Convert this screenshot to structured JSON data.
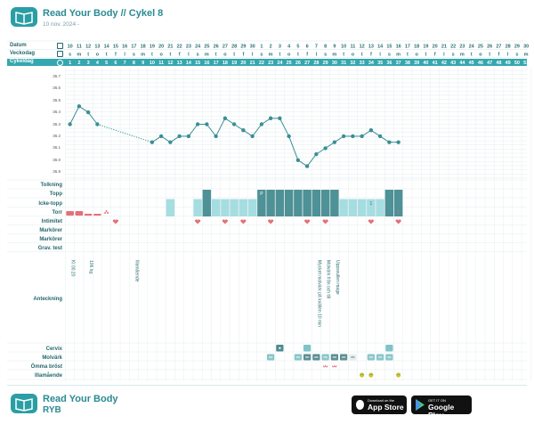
{
  "header": {
    "title": "Read Your Body // Cykel 8",
    "subtitle": "10 nov. 2024 -"
  },
  "row_labels": {
    "date": "Datum",
    "weekday": "Veckodag",
    "cycleday": "Cykeldag"
  },
  "dates": [
    "10",
    "11",
    "12",
    "13",
    "14",
    "15",
    "16",
    "17",
    "18",
    "19",
    "20",
    "21",
    "22",
    "23",
    "24",
    "25",
    "26",
    "27",
    "28",
    "29",
    "30",
    "1",
    "2",
    "3",
    "4",
    "5",
    "6",
    "7",
    "8",
    "9",
    "10",
    "11",
    "12",
    "13",
    "14",
    "15",
    "16",
    "17",
    "18",
    "19",
    "20",
    "21",
    "22",
    "23",
    "24",
    "25",
    "26",
    "27",
    "28",
    "29",
    "30"
  ],
  "weekdays": [
    "s",
    "m",
    "t",
    "o",
    "t",
    "f",
    "l",
    "s",
    "m",
    "t",
    "o",
    "t",
    "f",
    "l",
    "s",
    "m",
    "t",
    "o",
    "t",
    "f",
    "l",
    "s",
    "m",
    "t",
    "o",
    "t",
    "f",
    "l",
    "s",
    "m",
    "t",
    "o",
    "t",
    "f",
    "l",
    "s",
    "m",
    "t",
    "o",
    "t",
    "f",
    "l",
    "s",
    "m",
    "t",
    "o",
    "t",
    "f",
    "l",
    "s",
    "m"
  ],
  "cycledays": [
    "1",
    "2",
    "3",
    "4",
    "5",
    "6",
    "7",
    "8",
    "9",
    "10",
    "11",
    "12",
    "13",
    "14",
    "15",
    "16",
    "17",
    "18",
    "19",
    "20",
    "21",
    "22",
    "23",
    "24",
    "25",
    "26",
    "27",
    "28",
    "29",
    "30",
    "31",
    "32",
    "33",
    "34",
    "35",
    "36",
    "37",
    "38",
    "39",
    "40",
    "41",
    "42",
    "43",
    "44",
    "45",
    "46",
    "47",
    "48",
    "49",
    "50",
    "51"
  ],
  "chart_data": {
    "type": "line",
    "y_ticks": [
      "36.7",
      "36.6",
      "36.5",
      "36.4",
      "36.3",
      "36.2",
      "36.1",
      "36.0",
      "35.9"
    ],
    "ylim": [
      35.85,
      36.75
    ],
    "points": [
      [
        1,
        36.3
      ],
      [
        2,
        36.45
      ],
      [
        3,
        36.4
      ],
      [
        4,
        36.3
      ],
      [
        10,
        36.15
      ],
      [
        11,
        36.2
      ],
      [
        12,
        36.15
      ],
      [
        13,
        36.2
      ],
      [
        14,
        36.2
      ],
      [
        15,
        36.3
      ],
      [
        16,
        36.3
      ],
      [
        17,
        36.2
      ],
      [
        18,
        36.35
      ],
      [
        19,
        36.3
      ],
      [
        20,
        36.25
      ],
      [
        21,
        36.2
      ],
      [
        22,
        36.3
      ],
      [
        23,
        36.35
      ],
      [
        24,
        36.35
      ],
      [
        25,
        36.2
      ],
      [
        26,
        36.0
      ],
      [
        27,
        35.95
      ],
      [
        28,
        36.05
      ],
      [
        29,
        36.1
      ],
      [
        30,
        36.15
      ],
      [
        31,
        36.2
      ],
      [
        32,
        36.2
      ],
      [
        33,
        36.2
      ],
      [
        34,
        36.25
      ],
      [
        35,
        36.2
      ],
      [
        36,
        36.15
      ],
      [
        37,
        36.15
      ]
    ],
    "dotted_gap": [
      4,
      10
    ]
  },
  "obs_labels": {
    "tolkning": "Tolkning",
    "topp": "Topp",
    "icke_topp": "Icke-topp",
    "torr": "Torr",
    "intimitet": "Intimitet",
    "markorer1": "Markörer",
    "markorer2": "Markörer",
    "grav_test": "Grav. test",
    "anteckning": "Anteckning",
    "cervix": "Cervix",
    "molvark": "Molvärk",
    "omma_brost": "Ömma bröst",
    "illamaende": "Illamående"
  },
  "top_marker": "P",
  "numeric_marker": "1",
  "notes": [
    {
      "day": 1,
      "text": "Kl 00.20"
    },
    {
      "day": 3,
      "text": "106 kg"
    },
    {
      "day": 8,
      "text": "Illamående"
    },
    {
      "day": 28,
      "text": "Mycket molvärk på kvällen 10 min"
    },
    {
      "day": 29,
      "text": "Molvärk från och till"
    },
    {
      "day": 30,
      "text": "Uppsvullen mage"
    }
  ],
  "footer": {
    "title": "Read Your Body",
    "subtitle": "RYB",
    "appstore_small": "Download on the",
    "appstore_big": "App Store",
    "gplay_small": "GET IT ON",
    "gplay_big": "Google Play"
  },
  "colors": {
    "accent": "#2a9ea5",
    "header_bar": "#35a7ae",
    "dark_teal": "#4e9196",
    "light_teal": "#a6dde0",
    "red": "#e46f78"
  }
}
